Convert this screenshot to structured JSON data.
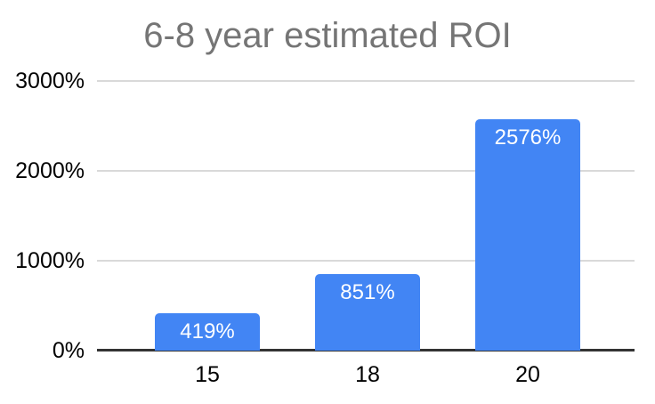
{
  "chart_data": {
    "type": "bar",
    "title": "6-8 year estimated ROI",
    "categories": [
      "15",
      "18",
      "20"
    ],
    "values": [
      419,
      851,
      2576
    ],
    "data_labels": [
      "419%",
      "851%",
      "2576%"
    ],
    "xlabel": "",
    "ylabel": "",
    "ylim": [
      0,
      3000
    ],
    "yticks": [
      0,
      1000,
      2000,
      3000
    ],
    "ytick_labels": [
      "0%",
      "1000%",
      "2000%",
      "3000%"
    ],
    "grid": true,
    "legend_position": "none",
    "colors": {
      "bar": "#4285F4",
      "data_label": "#ffffff",
      "title": "#757575",
      "axis_text": "#000000",
      "gridline": "#d9d9d9",
      "axis_line": "#333333",
      "background": "#ffffff"
    }
  }
}
